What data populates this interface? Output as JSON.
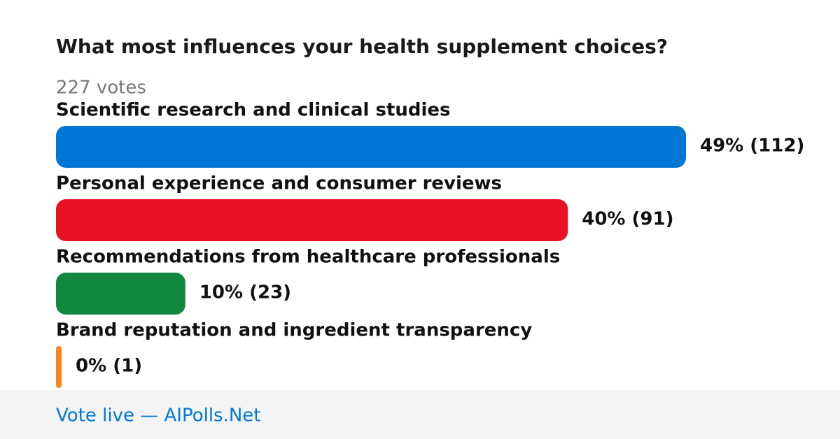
{
  "chart_data": {
    "type": "bar",
    "orientation": "horizontal",
    "title": "What most influences your health supplement choices?",
    "subtitle": "227 votes",
    "categories": [
      "Scientific research and clinical studies",
      "Personal experience and consumer reviews",
      "Recommendations from healthcare professionals",
      "Brand reputation and ingredient transparency"
    ],
    "values": [
      112,
      91,
      23,
      1
    ],
    "value_labels": [
      "49% (112)",
      "40% (91)",
      "10% (23)",
      "0% (1)"
    ],
    "colors": [
      "#0077d4",
      "#e81224",
      "#10893e",
      "#f7861c"
    ]
  },
  "footer": "Vote live — AIPolls.Net"
}
